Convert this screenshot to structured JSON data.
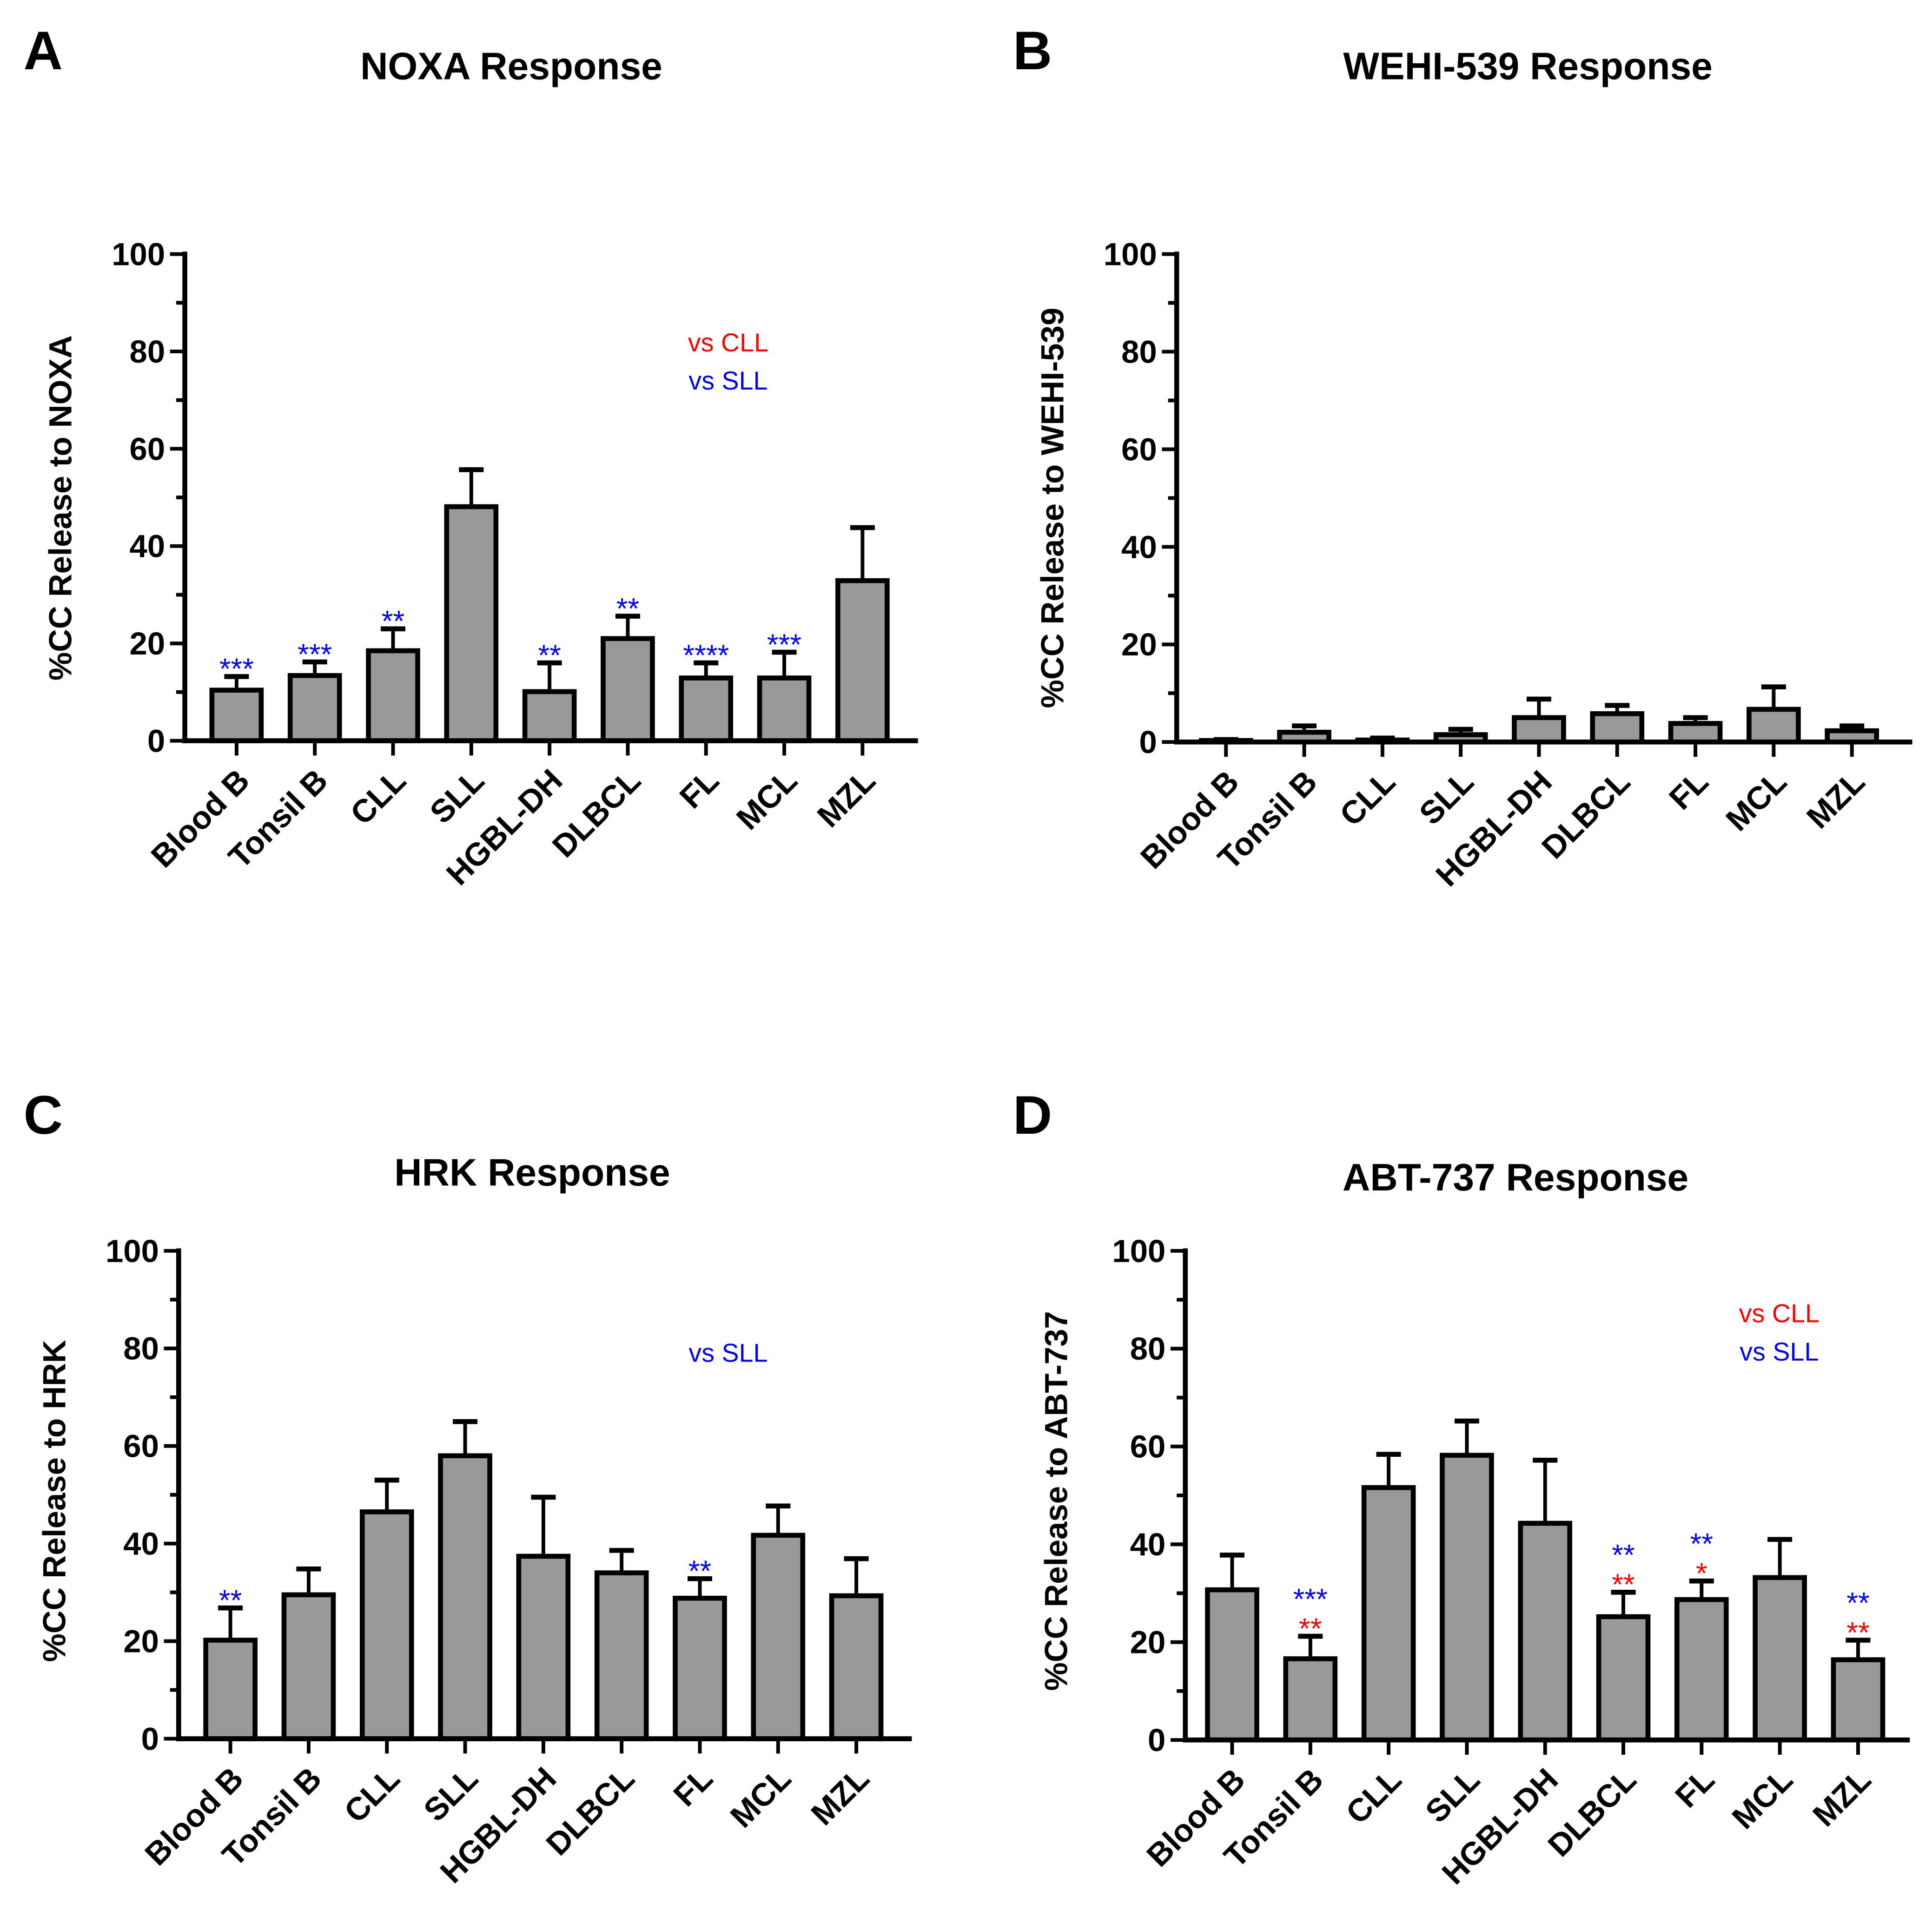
{
  "colors": {
    "bar": "#999999",
    "stroke": "#000000",
    "vs_cll": "#ff0000",
    "vs_sll": "#0000ff"
  },
  "chart_data": [
    {
      "panel": "A",
      "type": "bar",
      "title": "NOXA Response",
      "ylabel": "%CC Release to NOXA",
      "xlabel": "",
      "ylim": [
        0,
        100
      ],
      "yticks": [
        "0",
        "20",
        "40",
        "60",
        "80",
        "100"
      ],
      "categories": [
        "Blood B",
        "Tonsil B",
        "CLL",
        "SLL",
        "HGBL-DH",
        "DLBCL",
        "FL",
        "MCL",
        "MZL"
      ],
      "values": [
        10.4,
        13.4,
        18.5,
        48.1,
        10.1,
        21.0,
        12.9,
        12.9,
        32.9
      ],
      "error_upper": [
        13.2,
        16.2,
        23.0,
        55.7,
        16.0,
        25.6,
        16.0,
        18.2,
        43.8
      ],
      "legend": [
        {
          "text": "vs CLL",
          "color": "#ff0000"
        },
        {
          "text": "vs SLL",
          "color": "#0000ff"
        }
      ],
      "sig_vs_sll": [
        "***",
        "***",
        "**",
        "",
        "**",
        "**",
        "****",
        "***",
        ""
      ],
      "sig_vs_cll": [
        "",
        "",
        "",
        "",
        "",
        "",
        "",
        "",
        ""
      ]
    },
    {
      "panel": "B",
      "type": "bar",
      "title": "WEHI-539 Response",
      "ylabel": "%CC Release to WEHI-539",
      "xlabel": "",
      "ylim": [
        0,
        100
      ],
      "yticks": [
        "0",
        "20",
        "40",
        "60",
        "80",
        "100"
      ],
      "categories": [
        "Blood B",
        "Tonsil B",
        "CLL",
        "SLL",
        "HGBL-DH",
        "DLBCL",
        "FL",
        "MCL",
        "MZL"
      ],
      "values": [
        0.3,
        2.0,
        0.4,
        1.5,
        5.0,
        5.8,
        3.8,
        6.7,
        2.3
      ],
      "error_upper": [
        0.5,
        3.3,
        0.8,
        2.6,
        8.8,
        7.5,
        5.0,
        11.3,
        3.3
      ],
      "legend": [],
      "sig_vs_sll": [
        "",
        "",
        "",
        "",
        "",
        "",
        "",
        "",
        ""
      ],
      "sig_vs_cll": [
        "",
        "",
        "",
        "",
        "",
        "",
        "",
        "",
        ""
      ]
    },
    {
      "panel": "C",
      "type": "bar",
      "title": "HRK Response",
      "ylabel": "%CC Release to HRK",
      "xlabel": "",
      "ylim": [
        0,
        100
      ],
      "yticks": [
        "0",
        "20",
        "40",
        "60",
        "80",
        "100"
      ],
      "categories": [
        "Blood B",
        "Tonsil B",
        "CLL",
        "SLL",
        "HGBL-DH",
        "DLBCL",
        "FL",
        "MCL",
        "MZL"
      ],
      "values": [
        20.2,
        29.5,
        46.5,
        58.0,
        37.4,
        34.0,
        28.8,
        41.7,
        29.3
      ],
      "error_upper": [
        26.8,
        34.8,
        53.0,
        65.0,
        49.5,
        38.6,
        32.8,
        47.7,
        36.9
      ],
      "legend": [
        {
          "text": "vs SLL",
          "color": "#0000ff"
        }
      ],
      "sig_vs_sll": [
        "**",
        "",
        "",
        "",
        "",
        "",
        "**",
        "",
        ""
      ],
      "sig_vs_cll": [
        "",
        "",
        "",
        "",
        "",
        "",
        "",
        "",
        ""
      ]
    },
    {
      "panel": "D",
      "type": "bar",
      "title": "ABT-737 Response",
      "ylabel": "%CC Release to ABT-737",
      "xlabel": "",
      "ylim": [
        0,
        100
      ],
      "yticks": [
        "0",
        "20",
        "40",
        "60",
        "80",
        "100"
      ],
      "categories": [
        "Blood B",
        "Tonsil B",
        "CLL",
        "SLL",
        "HGBL-DH",
        "DLBCL",
        "FL",
        "MCL",
        "MZL"
      ],
      "values": [
        30.7,
        16.6,
        51.6,
        58.2,
        44.3,
        25.2,
        28.7,
        33.2,
        16.4
      ],
      "error_upper": [
        37.8,
        21.2,
        58.4,
        65.2,
        57.2,
        30.2,
        32.5,
        41.0,
        20.4
      ],
      "legend": [
        {
          "text": "vs CLL",
          "color": "#ff0000"
        },
        {
          "text": "vs SLL",
          "color": "#0000ff"
        }
      ],
      "sig_vs_sll": [
        "",
        "***",
        "",
        "",
        "",
        "**",
        "**",
        "",
        "**"
      ],
      "sig_vs_cll": [
        "",
        "**",
        "",
        "",
        "",
        "**",
        "*",
        "",
        "**"
      ]
    }
  ]
}
